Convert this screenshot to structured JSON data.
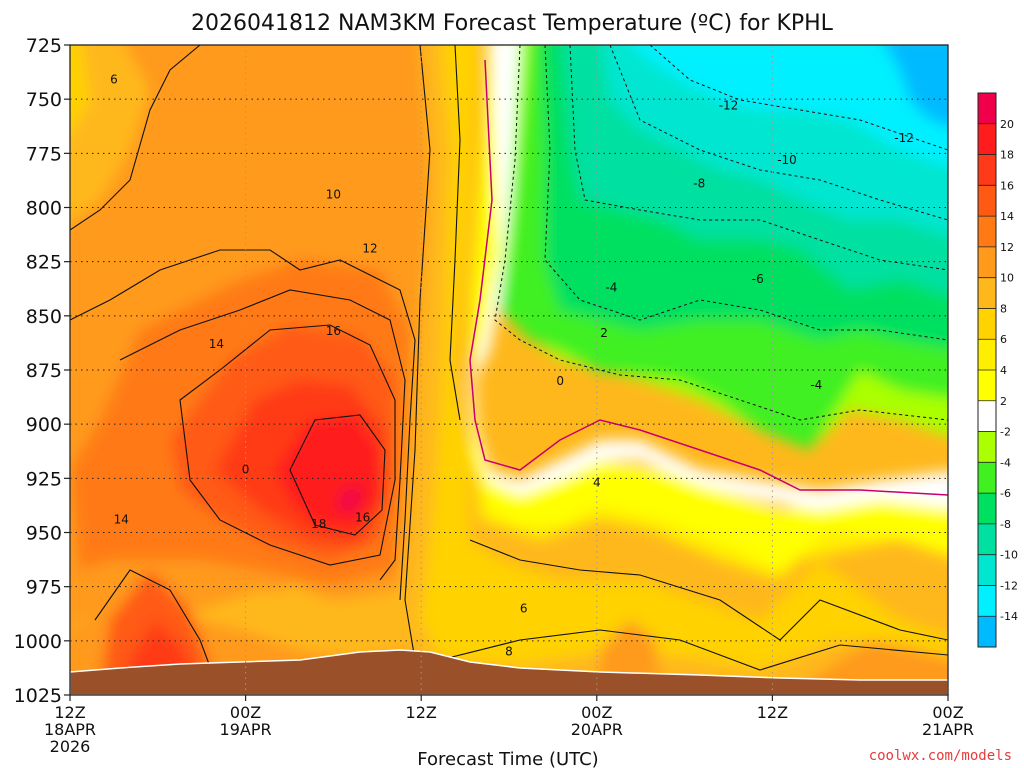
{
  "chart_data": {
    "type": "heatmap",
    "title": "2026041812 NAM3KM Forecast Temperature (ºC) for KPHL",
    "xlabel": "Forecast Time (UTC)",
    "ylabel": "",
    "credit": "coolwx.com/models",
    "y_ticks": [
      725,
      750,
      775,
      800,
      825,
      850,
      875,
      900,
      925,
      950,
      975,
      1000,
      1025
    ],
    "y_lim": [
      725,
      1025
    ],
    "x_lim": [
      0,
      60
    ],
    "x_ticks": [
      {
        "hour": 0,
        "lines": [
          "12Z",
          "18APR",
          "2026"
        ]
      },
      {
        "hour": 12,
        "lines": [
          "00Z",
          "19APR"
        ]
      },
      {
        "hour": 24,
        "lines": [
          "12Z"
        ]
      },
      {
        "hour": 36,
        "lines": [
          "00Z",
          "20APR"
        ]
      },
      {
        "hour": 48,
        "lines": [
          "12Z"
        ]
      },
      {
        "hour": 60,
        "lines": [
          "00Z",
          "21APR"
        ]
      }
    ],
    "colorbar": {
      "labels": [
        20,
        18,
        16,
        14,
        12,
        10,
        8,
        6,
        4,
        2,
        -2,
        -4,
        -6,
        -8,
        -10,
        -12,
        -14
      ],
      "colors": [
        "#f0004a",
        "#ff1c1c",
        "#ff3a18",
        "#ff5a14",
        "#ff7a14",
        "#ff9a1a",
        "#ffb81c",
        "#ffd200",
        "#ffee00",
        "#ffff00",
        "#ffffff",
        "#aaff00",
        "#40f020",
        "#00e060",
        "#00e0a0",
        "#00e6d0",
        "#00f0ff",
        "#00baff"
      ]
    },
    "contour_labels": [
      {
        "text": "6",
        "hour": 3.0,
        "p": 741
      },
      {
        "text": "10",
        "hour": 18.0,
        "p": 794
      },
      {
        "text": "12",
        "hour": 20.5,
        "p": 819
      },
      {
        "text": "14",
        "hour": 10.0,
        "p": 863
      },
      {
        "text": "16",
        "hour": 18.0,
        "p": 857
      },
      {
        "text": "0",
        "hour": 12.0,
        "p": 921
      },
      {
        "text": "14",
        "hour": 3.5,
        "p": 944
      },
      {
        "text": "18",
        "hour": 17.0,
        "p": 946
      },
      {
        "text": "16",
        "hour": 20.0,
        "p": 943
      },
      {
        "text": "6",
        "hour": 31.0,
        "p": 985
      },
      {
        "text": "8",
        "hour": 30.0,
        "p": 1005
      },
      {
        "text": "4",
        "hour": 36.0,
        "p": 927
      },
      {
        "text": "0",
        "hour": 33.5,
        "p": 880
      },
      {
        "text": "2",
        "hour": 36.5,
        "p": 858
      },
      {
        "text": "-4",
        "hour": 37.0,
        "p": 837
      },
      {
        "text": "-6",
        "hour": 47.0,
        "p": 833
      },
      {
        "text": "-4",
        "hour": 51.0,
        "p": 882
      },
      {
        "text": "-8",
        "hour": 43.0,
        "p": 789
      },
      {
        "text": "-10",
        "hour": 49.0,
        "p": 778
      },
      {
        "text": "-12",
        "hour": 45.0,
        "p": 753
      },
      {
        "text": "-12",
        "hour": 57.0,
        "p": 768
      }
    ]
  }
}
